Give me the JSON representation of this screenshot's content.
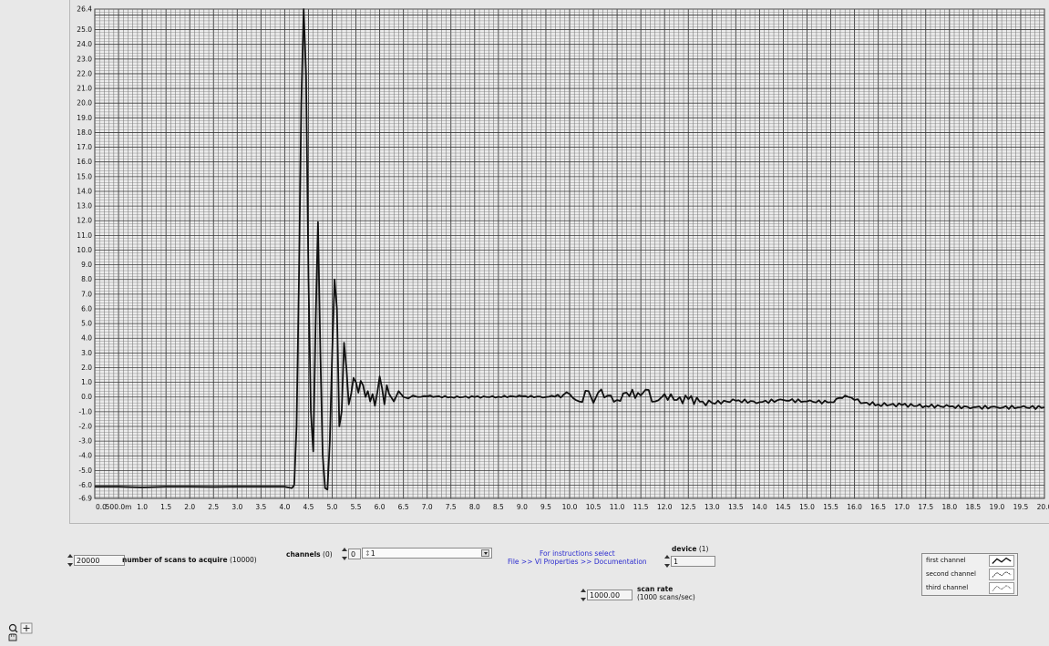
{
  "chart_data": {
    "type": "line",
    "title": "",
    "xlabel": "",
    "ylabel": "",
    "xlim": [
      0,
      20
    ],
    "ylim": [
      -6.9,
      26.4
    ],
    "x_tick_labels": [
      "0.0",
      "500.0m",
      "1.0",
      "1.5",
      "2.0",
      "2.5",
      "3.0",
      "3.5",
      "4.0",
      "4.5",
      "5.0",
      "5.5",
      "6.0",
      "6.5",
      "7.0",
      "7.5",
      "8.0",
      "8.5",
      "9.0",
      "9.5",
      "10.0",
      "10.5",
      "11.0",
      "11.5",
      "12.0",
      "12.5",
      "13.0",
      "13.5",
      "14.0",
      "14.5",
      "15.0",
      "15.5",
      "16.0",
      "16.5",
      "17.0",
      "17.5",
      "18.0",
      "18.5",
      "19.0",
      "19.5",
      "20.0"
    ],
    "y_tick_labels": [
      "26.4",
      "25.0",
      "24.0",
      "23.0",
      "22.0",
      "21.0",
      "20.0",
      "19.0",
      "18.0",
      "17.0",
      "16.0",
      "15.0",
      "14.0",
      "13.0",
      "12.0",
      "11.0",
      "10.0",
      "9.0",
      "8.0",
      "7.0",
      "6.0",
      "5.0",
      "4.0",
      "3.0",
      "2.0",
      "1.0",
      "0.0",
      "-1.0",
      "-2.0",
      "-3.0",
      "-4.0",
      "-5.0",
      "-6.0",
      "-6.9"
    ],
    "grid": true,
    "series": [
      {
        "x": [
          0,
          0.5,
          1,
          1.5,
          2,
          2.5,
          3,
          3.5,
          4,
          4.15,
          4.2,
          4.25,
          4.3,
          4.35,
          4.4,
          4.45,
          4.5,
          4.55,
          4.6,
          4.65,
          4.7,
          4.75,
          4.8,
          4.85,
          4.9,
          4.95,
          5.0,
          5.05,
          5.1,
          5.15,
          5.2,
          5.25,
          5.3,
          5.35,
          5.4,
          5.45,
          5.5,
          5.55,
          5.6,
          5.65,
          5.7,
          5.75,
          5.8,
          5.85,
          5.9,
          5.95,
          6.0,
          6.05,
          6.1,
          6.15,
          6.2,
          6.3,
          6.4,
          6.5,
          6.6,
          6.7,
          6.8,
          7.0,
          7.5,
          8.0,
          8.5,
          9.0,
          9.5,
          10.0,
          10.2,
          10.4,
          10.5,
          10.6,
          10.8,
          11.0,
          11.2,
          11.5,
          11.6,
          11.8,
          12.0,
          12.2,
          12.5,
          12.8,
          13.0,
          13.5,
          14.0,
          14.5,
          15.0,
          15.5,
          15.8,
          16.0,
          16.2,
          16.5,
          17.0,
          17.5,
          18.0,
          18.5,
          19.0,
          19.5,
          20.0
        ],
        "y": [
          -6.1,
          -6.1,
          -6.15,
          -6.1,
          -6.1,
          -6.12,
          -6.1,
          -6.1,
          -6.1,
          -6.2,
          -6.0,
          -2,
          8,
          20,
          26.4,
          22,
          8,
          -1,
          -3.7,
          5,
          11.9,
          3,
          -4,
          -6.2,
          -6.3,
          -3,
          3,
          8,
          6,
          -2,
          -1,
          3.7,
          2,
          -0.5,
          0.2,
          1.3,
          1.0,
          0.3,
          1.1,
          0.8,
          0.0,
          0.4,
          -0.3,
          0.2,
          -0.6,
          0.3,
          1.4,
          0.6,
          -0.5,
          0.8,
          0.2,
          -0.3,
          0.4,
          0.0,
          -0.1,
          0.1,
          0.0,
          0.05,
          0.0,
          0.0,
          0.02,
          0.05,
          0.0,
          0.2,
          -0.3,
          0.4,
          -0.4,
          0.3,
          0.1,
          -0.2,
          0.3,
          0.1,
          0.5,
          -0.3,
          0.2,
          -0.2,
          -0.15,
          -0.3,
          -0.4,
          -0.25,
          -0.35,
          -0.2,
          -0.3,
          -0.35,
          0.1,
          -0.2,
          -0.4,
          -0.5,
          -0.55,
          -0.6,
          -0.65,
          -0.7,
          -0.7,
          -0.7,
          -0.7
        ]
      }
    ]
  },
  "controls": {
    "scans_value": "20000",
    "scans_label": "number of scans to acquire",
    "scans_default": "(10000)",
    "channels_label": "channels",
    "channels_default": "(0)",
    "channels_index": "0",
    "channels_value": "1",
    "instructions_line1": "For instructions select",
    "instructions_line2": "File >> VI Properties >> Documentation",
    "device_label": "device",
    "device_default": "(1)",
    "device_value": "1",
    "scan_rate_value": "1000.00",
    "scan_rate_label": "scan rate",
    "scan_rate_default": "(1000 scans/sec)"
  },
  "legend": {
    "items": [
      {
        "name": "first channel"
      },
      {
        "name": "second channel"
      },
      {
        "name": "third channel"
      }
    ]
  },
  "colors": {
    "plot_line": "#111111",
    "grid": "#4a4a4a",
    "instructions": "#2c2ccf"
  }
}
